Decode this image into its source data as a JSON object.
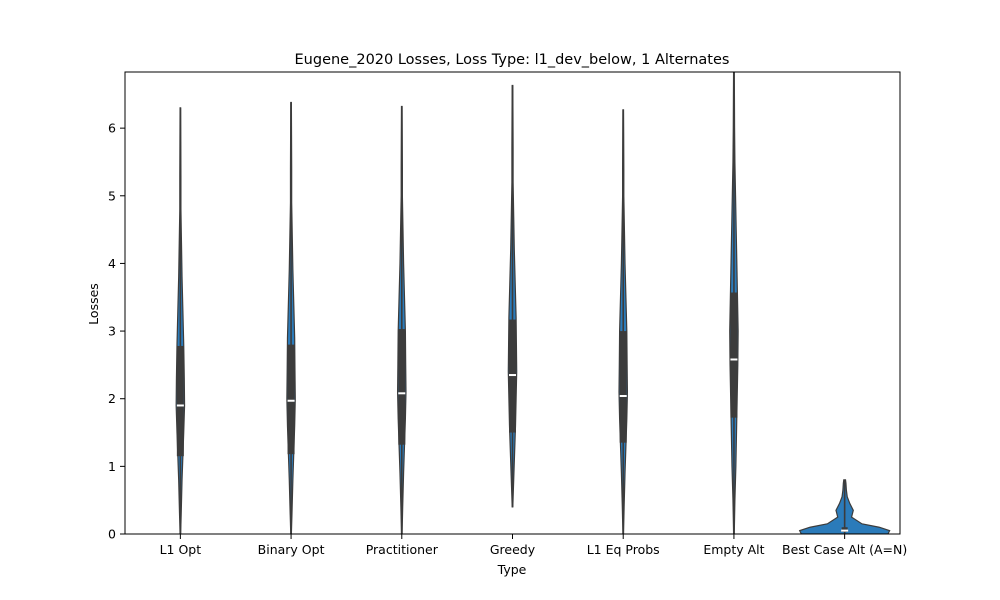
{
  "chart_data": {
    "type": "violin",
    "title": "Eugene_2020 Losses, Loss Type: l1_dev_below, 1 Alternates",
    "xlabel": "Type",
    "ylabel": "Losses",
    "ylim": [
      0,
      6.83
    ],
    "yticks": [
      0,
      1,
      2,
      3,
      4,
      5,
      6
    ],
    "grid": false,
    "colors": {
      "violin": "#2b7bba",
      "outline": "#3c3c3c",
      "box": "#3c3c3c",
      "median": "#ffffff"
    },
    "categories": [
      "L1 Opt",
      "Binary Opt",
      "Practitioner",
      "Greedy",
      "L1 Eq Probs",
      "Empty Alt",
      "Best Case Alt (A=N)"
    ],
    "series": [
      {
        "label": "L1 Opt",
        "min": 0.0,
        "q1": 1.15,
        "median": 1.9,
        "q3": 2.78,
        "max": 6.3,
        "density_points": [
          [
            0.0,
            1
          ],
          [
            0.3,
            3
          ],
          [
            0.8,
            6
          ],
          [
            1.15,
            9
          ],
          [
            1.5,
            12
          ],
          [
            1.9,
            15
          ],
          [
            2.3,
            14
          ],
          [
            2.8,
            12
          ],
          [
            3.3,
            9
          ],
          [
            3.8,
            6
          ],
          [
            4.3,
            4
          ],
          [
            4.8,
            2
          ],
          [
            5.3,
            2
          ],
          [
            5.8,
            1.5
          ],
          [
            6.3,
            1
          ]
        ]
      },
      {
        "label": "Binary Opt",
        "min": 0.0,
        "q1": 1.18,
        "median": 1.97,
        "q3": 2.8,
        "max": 6.38,
        "density_points": [
          [
            0.0,
            1
          ],
          [
            0.3,
            3
          ],
          [
            0.8,
            6
          ],
          [
            1.2,
            9
          ],
          [
            1.6,
            12
          ],
          [
            2.0,
            14
          ],
          [
            2.4,
            13
          ],
          [
            2.9,
            12
          ],
          [
            3.4,
            9
          ],
          [
            3.9,
            6
          ],
          [
            4.4,
            4
          ],
          [
            4.9,
            2
          ],
          [
            5.4,
            2
          ],
          [
            5.9,
            1.5
          ],
          [
            6.38,
            1
          ]
        ]
      },
      {
        "label": "Practitioner",
        "min": 0.0,
        "q1": 1.32,
        "median": 2.08,
        "q3": 3.03,
        "max": 6.32,
        "density_points": [
          [
            0.0,
            1
          ],
          [
            0.4,
            3
          ],
          [
            0.9,
            6
          ],
          [
            1.3,
            9
          ],
          [
            1.7,
            12
          ],
          [
            2.1,
            14
          ],
          [
            2.5,
            13
          ],
          [
            3.0,
            12
          ],
          [
            3.5,
            9
          ],
          [
            4.0,
            6
          ],
          [
            4.5,
            4
          ],
          [
            5.0,
            2
          ],
          [
            5.4,
            2
          ],
          [
            5.9,
            1.5
          ],
          [
            6.32,
            1
          ]
        ]
      },
      {
        "label": "Greedy",
        "min": 0.4,
        "q1": 1.5,
        "median": 2.35,
        "q3": 3.17,
        "max": 6.63,
        "density_points": [
          [
            0.4,
            1
          ],
          [
            0.8,
            4
          ],
          [
            1.2,
            7
          ],
          [
            1.6,
            10
          ],
          [
            2.0,
            12
          ],
          [
            2.4,
            14
          ],
          [
            2.8,
            13
          ],
          [
            3.2,
            12
          ],
          [
            3.7,
            9
          ],
          [
            4.2,
            6
          ],
          [
            4.7,
            4
          ],
          [
            5.2,
            2
          ],
          [
            5.7,
            2
          ],
          [
            6.2,
            1.5
          ],
          [
            6.63,
            1
          ]
        ]
      },
      {
        "label": "L1 Eq Probs",
        "min": 0.0,
        "q1": 1.35,
        "median": 2.04,
        "q3": 3.0,
        "max": 6.27,
        "density_points": [
          [
            0.0,
            1
          ],
          [
            0.4,
            3
          ],
          [
            0.9,
            6
          ],
          [
            1.3,
            9
          ],
          [
            1.7,
            12
          ],
          [
            2.1,
            14
          ],
          [
            2.5,
            13
          ],
          [
            3.0,
            12
          ],
          [
            3.5,
            9
          ],
          [
            4.0,
            6
          ],
          [
            4.5,
            4
          ],
          [
            5.0,
            2
          ],
          [
            5.4,
            2
          ],
          [
            5.9,
            1.5
          ],
          [
            6.27,
            1
          ]
        ]
      },
      {
        "label": "Empty Alt",
        "min": 0.0,
        "q1": 1.72,
        "median": 2.58,
        "q3": 3.57,
        "max": 6.9,
        "density_points": [
          [
            0.0,
            1
          ],
          [
            0.5,
            3
          ],
          [
            1.0,
            6
          ],
          [
            1.5,
            8
          ],
          [
            2.0,
            10
          ],
          [
            2.5,
            12
          ],
          [
            3.0,
            13
          ],
          [
            3.5,
            11
          ],
          [
            4.0,
            9
          ],
          [
            4.5,
            7
          ],
          [
            5.0,
            5
          ],
          [
            5.5,
            3
          ],
          [
            6.0,
            2
          ],
          [
            6.5,
            1.5
          ],
          [
            6.9,
            1
          ]
        ]
      },
      {
        "label": "Best Case Alt (A=N)",
        "min": 0.0,
        "q1": 0.03,
        "median": 0.05,
        "q3": 0.1,
        "max": 0.8,
        "density_points": [
          [
            0.0,
            50
          ],
          [
            0.05,
            52
          ],
          [
            0.1,
            40
          ],
          [
            0.15,
            20
          ],
          [
            0.25,
            8
          ],
          [
            0.35,
            10
          ],
          [
            0.45,
            6
          ],
          [
            0.55,
            3
          ],
          [
            0.65,
            2
          ],
          [
            0.75,
            1.5
          ],
          [
            0.8,
            1
          ]
        ]
      }
    ]
  }
}
